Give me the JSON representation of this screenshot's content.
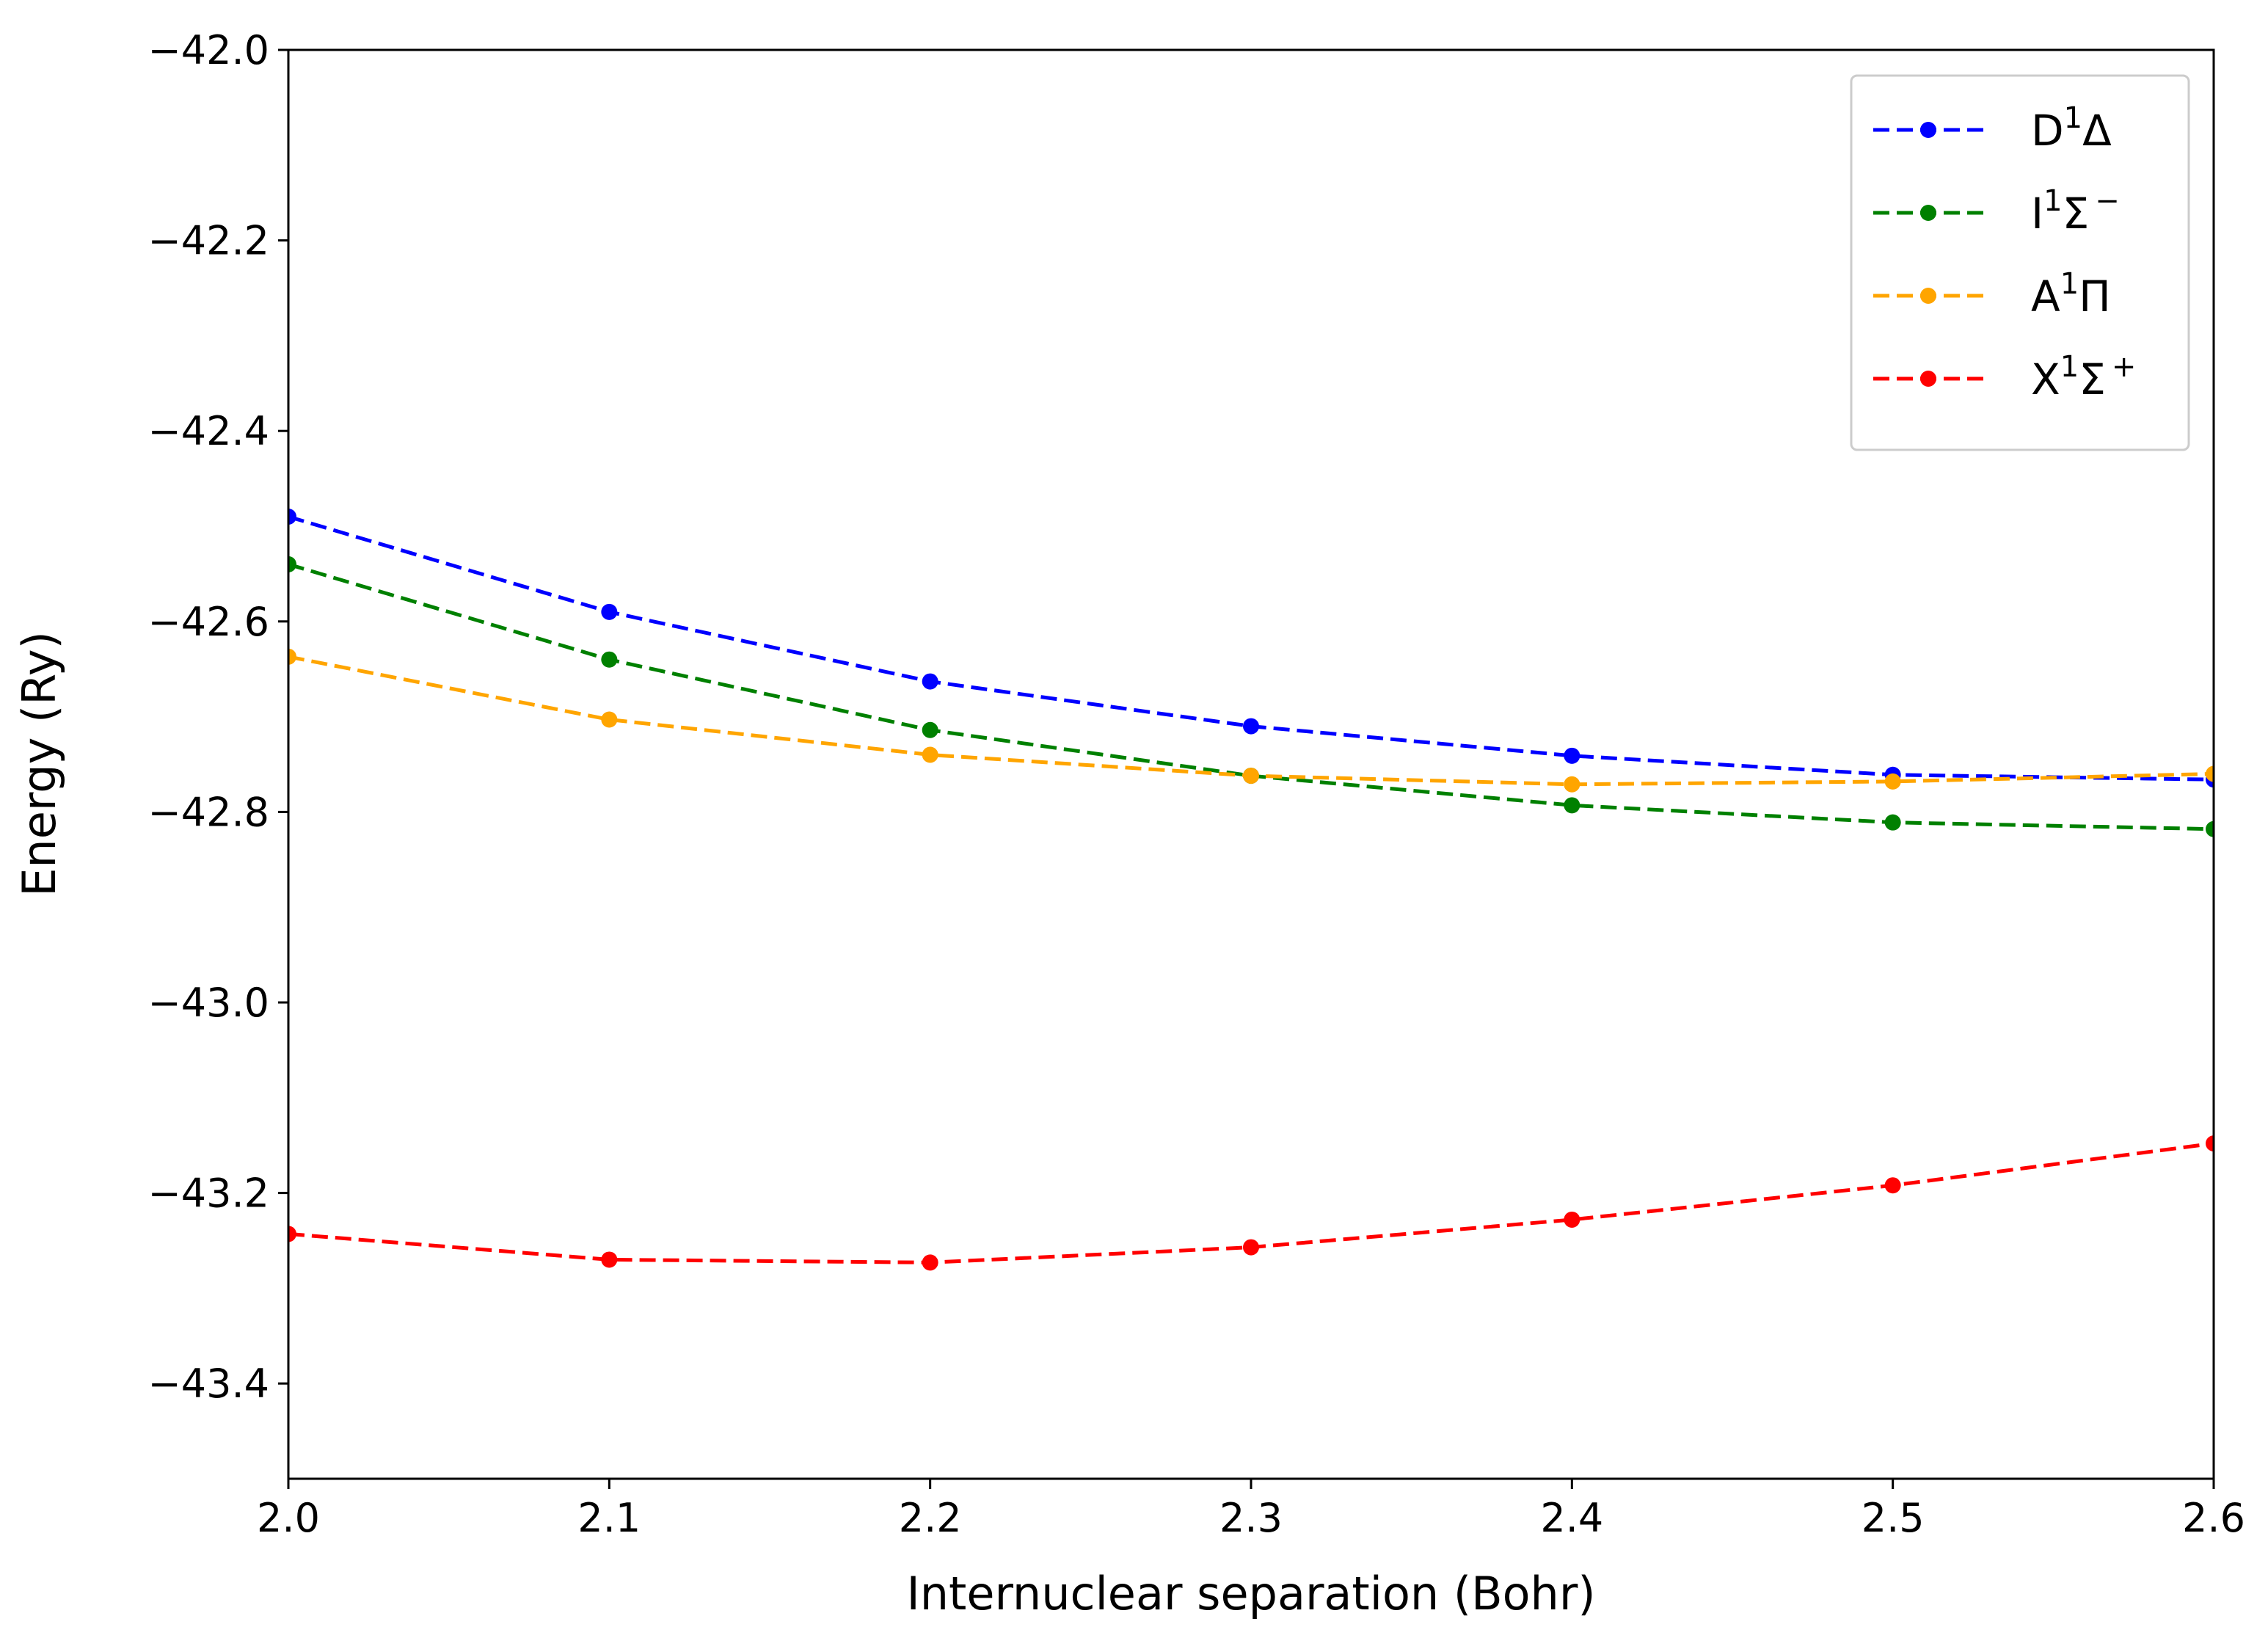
{
  "chart_data": {
    "type": "line",
    "title": "",
    "xlabel": "Internuclear separation (Bohr)",
    "ylabel": "Energy (Ry)",
    "xlim": [
      2.0,
      2.6
    ],
    "ylim": [
      -43.5,
      -42.0
    ],
    "grid": false,
    "legend_position": "top-right",
    "x_ticks": [
      2.0,
      2.1,
      2.2,
      2.3,
      2.4,
      2.5,
      2.6
    ],
    "x_tick_labels": [
      "2.0",
      "2.1",
      "2.2",
      "2.3",
      "2.4",
      "2.5",
      "2.6"
    ],
    "y_ticks": [
      -42.0,
      -42.2,
      -42.4,
      -42.6,
      -42.8,
      -43.0,
      -43.2,
      -43.4
    ],
    "y_tick_labels": [
      "−42.0",
      "−42.2",
      "−42.4",
      "−42.6",
      "−42.8",
      "−43.0",
      "−43.2",
      "−43.4"
    ],
    "x": [
      2.0,
      2.1,
      2.2,
      2.3,
      2.4,
      2.5,
      2.6
    ],
    "series": [
      {
        "name": "D1Δ",
        "legend_base": "D",
        "legend_sup": "1",
        "legend_symbol": "Δ",
        "legend_symbol_sup": "",
        "color": "#0000ff",
        "values": [
          -42.49,
          -42.59,
          -42.663,
          -42.71,
          -42.741,
          -42.761,
          -42.766
        ]
      },
      {
        "name": "I1Σ−",
        "legend_base": "I",
        "legend_sup": "1",
        "legend_symbol": "Σ",
        "legend_symbol_sup": "−",
        "color": "#008000",
        "values": [
          -42.54,
          -42.64,
          -42.714,
          -42.762,
          -42.793,
          -42.811,
          -42.818
        ]
      },
      {
        "name": "A1Π",
        "legend_base": "A",
        "legend_sup": "1",
        "legend_symbol": "Π",
        "legend_symbol_sup": "",
        "color": "#ffa500",
        "values": [
          -42.637,
          -42.703,
          -42.74,
          -42.762,
          -42.771,
          -42.768,
          -42.76
        ]
      },
      {
        "name": "X1Σ+",
        "legend_base": "X",
        "legend_sup": "1",
        "legend_symbol": "Σ",
        "legend_symbol_sup": "+",
        "color": "#ff0000",
        "values": [
          -43.243,
          -43.27,
          -43.273,
          -43.257,
          -43.228,
          -43.192,
          -43.148
        ]
      }
    ]
  }
}
